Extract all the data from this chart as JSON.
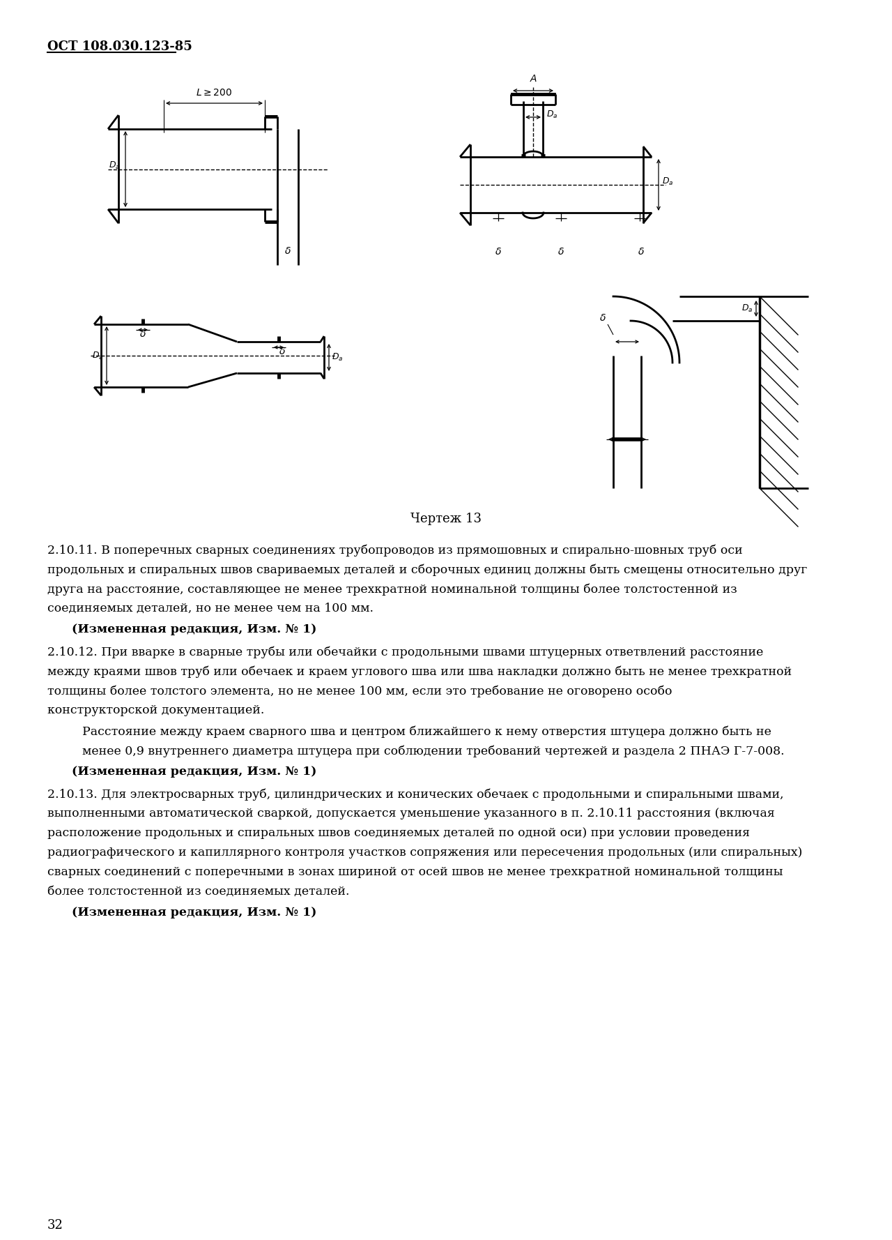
{
  "page_header": "ОСТ 108.030.123-85",
  "drawing_caption": "Чертеж 13",
  "paragraph_2_10_11_text": "2.10.11. В поперечных сварных соединениях трубопроводов из прямошовных и спирально-шовных труб оси продольных и спиральных швов свариваемых деталей и сборочных единиц должны быть смещены относительно друг друга на расстояние, составляющее не менее трехкратной номинальной толщины более толстостенной из соединяемых деталей, но не менее чем на 100 мм.",
  "paragraph_2_10_11_note": "(Измененная редакция, Изм. № 1)",
  "paragraph_2_10_12_text": "2.10.12. При вварке в сварные трубы или обечайки с продольными швами штуцерных ответвлений  расстояние между краями швов труб или обечаек и краем углового шва или шва накладки должно быть не менее трехкратной толщины более толстого элемента, но не менее 100 мм, если это требование не оговорено особо конструкторской документацией.",
  "paragraph_2_10_12_cont": "Расстояние между краем сварного шва и центром ближайшего к нему отверстия штуцера должно быть не менее 0,9 внутреннего диаметра штуцера при соблюдении требований чертежей и раздела 2 ПНАЭ Г-7-008.",
  "paragraph_2_10_12_note": "(Измененная редакция, Изм. № 1)",
  "paragraph_2_10_13_text": "2.10.13. Для электросварных труб, цилиндрических и конических обечаек с продольными и спиральными швами, выполненными автоматической сваркой, допускается уменьшение  указанного в п. 2.10.11 расстояния (включая расположение продольных и спиральных швов соединяемых деталей по одной оси) при условии проведения радиографического и капиллярного контроля участков сопряжения или пересечения продольных (или спиральных) сварных соединений с поперечными в зонах шириной от осей швов не менее трехкратной номинальной толщины более толстостенной из соединяемых деталей.",
  "paragraph_2_10_13_note": "(Измененная редакция, Изм. № 1)",
  "page_number": "32",
  "bg_color": "#ffffff",
  "line_color": "#000000",
  "text_color": "#000000"
}
